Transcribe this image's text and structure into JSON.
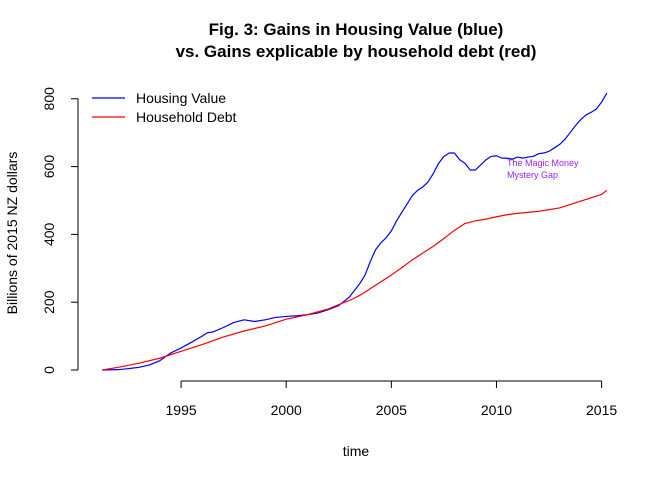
{
  "chart_data": {
    "type": "line",
    "title_line1": "Fig. 3: Gains in Housing Value (blue)",
    "title_line2": "vs. Gains explicable by household debt (red)",
    "xlabel": "time",
    "ylabel": "Billions of 2015 NZ dollars",
    "xlim": [
      1991.0,
      2015.4
    ],
    "ylim": [
      0,
      820
    ],
    "x_ticks": [
      1995,
      2000,
      2005,
      2010,
      2015
    ],
    "y_ticks": [
      0,
      200,
      400,
      600,
      800
    ],
    "grid": false,
    "legend_position": "top-left",
    "annotation": {
      "lines": [
        "The Magic Money",
        "Mystery Gap"
      ],
      "x": 2010.5,
      "y": 590,
      "color": "#A020F0"
    },
    "series": [
      {
        "name": "Housing Value",
        "color": "#0000FF",
        "x": [
          1991.25,
          1992.0,
          1992.5,
          1993.0,
          1993.5,
          1994.0,
          1994.5,
          1995.0,
          1995.5,
          1996.0,
          1996.25,
          1996.5,
          1997.0,
          1997.5,
          1998.0,
          1998.5,
          1999.0,
          1999.5,
          2000.0,
          2000.5,
          2001.0,
          2001.5,
          2002.0,
          2002.5,
          2003.0,
          2003.25,
          2003.5,
          2003.75,
          2004.0,
          2004.25,
          2004.5,
          2004.75,
          2005.0,
          2005.25,
          2005.5,
          2005.75,
          2006.0,
          2006.25,
          2006.5,
          2006.75,
          2007.0,
          2007.25,
          2007.5,
          2007.75,
          2008.0,
          2008.25,
          2008.5,
          2008.75,
          2009.0,
          2009.25,
          2009.5,
          2009.75,
          2010.0,
          2010.25,
          2010.5,
          2010.75,
          2011.0,
          2011.25,
          2011.5,
          2011.75,
          2012.0,
          2012.25,
          2012.5,
          2012.75,
          2013.0,
          2013.25,
          2013.5,
          2013.75,
          2014.0,
          2014.25,
          2014.5,
          2014.75,
          2015.0,
          2015.25
        ],
        "values": [
          0,
          1,
          4,
          8,
          15,
          28,
          50,
          65,
          82,
          100,
          110,
          112,
          125,
          140,
          148,
          143,
          148,
          155,
          158,
          160,
          163,
          168,
          178,
          190,
          215,
          235,
          255,
          280,
          320,
          355,
          375,
          390,
          410,
          440,
          465,
          490,
          515,
          530,
          540,
          555,
          580,
          610,
          630,
          640,
          640,
          620,
          610,
          590,
          590,
          605,
          620,
          630,
          632,
          625,
          625,
          622,
          628,
          625,
          628,
          630,
          638,
          640,
          645,
          655,
          665,
          680,
          700,
          720,
          738,
          752,
          760,
          770,
          790,
          817
        ]
      },
      {
        "name": "Household Debt",
        "color": "#FF0000",
        "x": [
          1991.25,
          1992.0,
          1993.0,
          1994.0,
          1995.0,
          1996.0,
          1997.0,
          1998.0,
          1999.0,
          2000.0,
          2001.0,
          2002.0,
          2002.5,
          2003.0,
          2003.5,
          2004.0,
          2004.5,
          2005.0,
          2005.5,
          2006.0,
          2006.5,
          2007.0,
          2007.5,
          2008.0,
          2008.5,
          2009.0,
          2009.5,
          2010.0,
          2010.5,
          2011.0,
          2011.5,
          2012.0,
          2012.5,
          2013.0,
          2013.5,
          2014.0,
          2014.5,
          2015.0,
          2015.25
        ],
        "values": [
          0,
          8,
          20,
          35,
          55,
          75,
          97,
          115,
          130,
          150,
          163,
          180,
          193,
          205,
          220,
          240,
          260,
          280,
          302,
          325,
          345,
          365,
          388,
          412,
          432,
          440,
          445,
          452,
          458,
          462,
          465,
          468,
          473,
          478,
          488,
          498,
          508,
          518,
          530
        ]
      }
    ]
  }
}
